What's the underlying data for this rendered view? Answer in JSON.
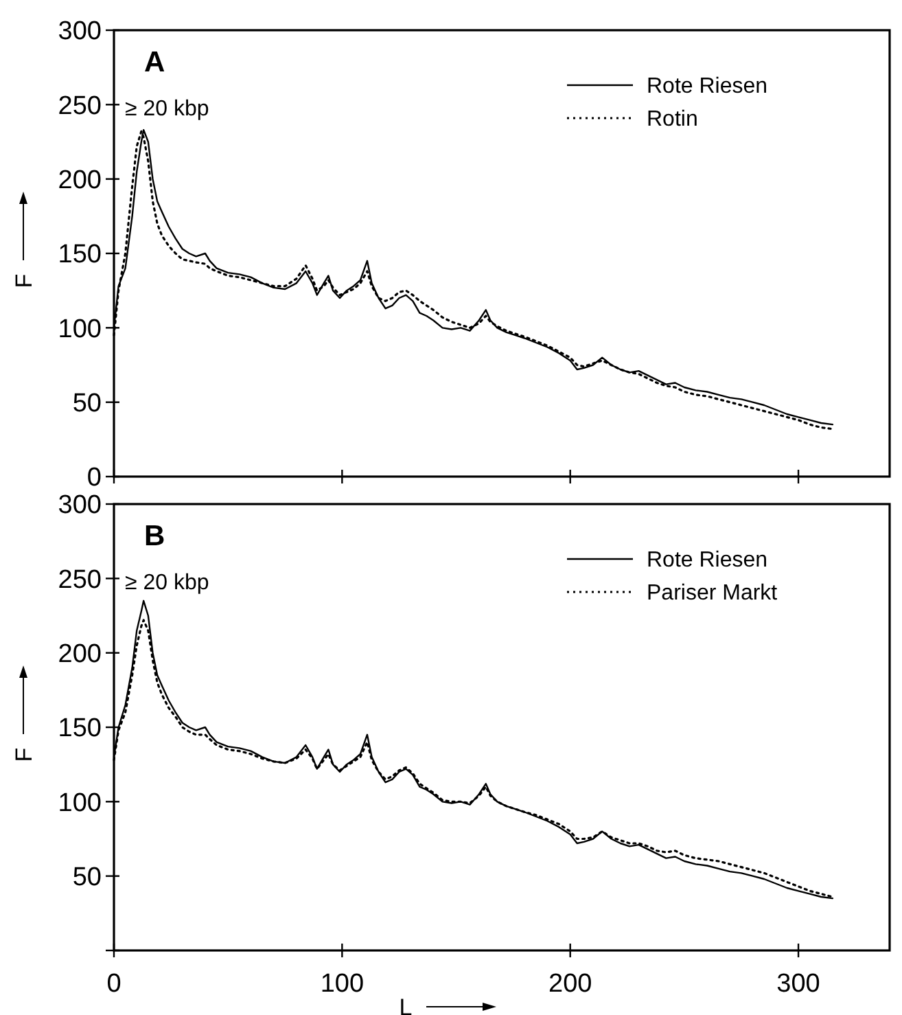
{
  "chart_data": [
    {
      "type": "line",
      "title": "A",
      "ylabel": "F",
      "annotations": [
        "≥ 20 kbp"
      ],
      "xlim": [
        0,
        340
      ],
      "xticks": [
        0,
        100,
        200,
        300
      ],
      "ylim": [
        0,
        300
      ],
      "yticks": [
        0,
        50,
        100,
        150,
        200,
        250,
        300
      ],
      "tick_labels": "y",
      "legend": "top right",
      "grid": false,
      "x": [
        0,
        2,
        5,
        8,
        10,
        12,
        13,
        15,
        17,
        19,
        21,
        24,
        27,
        30,
        33,
        36,
        40,
        42,
        45,
        50,
        55,
        60,
        65,
        70,
        75,
        80,
        84,
        87,
        89,
        92,
        94,
        96,
        99,
        102,
        105,
        108,
        111,
        113,
        116,
        119,
        122,
        125,
        128,
        131,
        134,
        137,
        140,
        144,
        148,
        152,
        156,
        160,
        163,
        165,
        168,
        172,
        176,
        180,
        185,
        190,
        195,
        200,
        203,
        206,
        210,
        214,
        218,
        222,
        226,
        230,
        234,
        238,
        242,
        246,
        250,
        255,
        260,
        265,
        270,
        275,
        280,
        285,
        290,
        295,
        300,
        305,
        310,
        315
      ],
      "series": [
        {
          "name": "Rote Riesen",
          "color": "#000000",
          "line_style": "solid",
          "values": [
            100,
            128,
            140,
            175,
            205,
            225,
            233,
            225,
            200,
            185,
            178,
            168,
            160,
            153,
            150,
            148,
            150,
            145,
            140,
            137,
            136,
            134,
            130,
            127,
            126,
            130,
            138,
            130,
            122,
            130,
            135,
            125,
            120,
            125,
            128,
            132,
            145,
            130,
            120,
            113,
            115,
            120,
            122,
            118,
            110,
            108,
            105,
            100,
            99,
            100,
            98,
            105,
            112,
            105,
            100,
            97,
            95,
            93,
            90,
            87,
            83,
            78,
            72,
            73,
            75,
            80,
            75,
            72,
            70,
            71,
            68,
            65,
            62,
            63,
            60,
            58,
            57,
            55,
            53,
            52,
            50,
            48,
            45,
            42,
            40,
            38,
            36,
            35
          ]
        },
        {
          "name": "Rotin",
          "color": "#000000",
          "line_style": "dotted",
          "values": [
            95,
            125,
            150,
            195,
            222,
            232,
            228,
            212,
            185,
            170,
            162,
            155,
            150,
            146,
            145,
            144,
            143,
            140,
            138,
            135,
            134,
            132,
            130,
            128,
            128,
            133,
            142,
            133,
            125,
            128,
            132,
            127,
            122,
            124,
            126,
            130,
            138,
            128,
            120,
            118,
            120,
            124,
            125,
            122,
            118,
            115,
            112,
            107,
            104,
            102,
            100,
            103,
            108,
            104,
            101,
            98,
            96,
            94,
            91,
            88,
            84,
            80,
            75,
            74,
            76,
            78,
            75,
            72,
            70,
            69,
            66,
            63,
            61,
            60,
            57,
            55,
            54,
            52,
            50,
            48,
            46,
            44,
            42,
            40,
            38,
            35,
            33,
            32
          ]
        }
      ]
    },
    {
      "type": "line",
      "title": "B",
      "xlabel": "L",
      "ylabel": "F",
      "annotations": [
        "≥ 20 kbp"
      ],
      "xlim": [
        0,
        340
      ],
      "xticks": [
        0,
        100,
        200,
        300
      ],
      "ylim": [
        0,
        300
      ],
      "yticks": [
        {
          "value": 0,
          "label": null
        },
        50,
        100,
        150,
        200,
        250,
        300
      ],
      "legend": "top right",
      "grid": false,
      "x": [
        0,
        2,
        5,
        8,
        10,
        12,
        13,
        15,
        17,
        19,
        21,
        24,
        27,
        30,
        33,
        36,
        40,
        42,
        45,
        50,
        55,
        60,
        65,
        70,
        75,
        80,
        84,
        87,
        89,
        92,
        94,
        96,
        99,
        102,
        105,
        108,
        111,
        113,
        116,
        119,
        122,
        125,
        128,
        131,
        134,
        137,
        140,
        144,
        148,
        152,
        156,
        160,
        163,
        165,
        168,
        172,
        176,
        180,
        185,
        190,
        195,
        200,
        203,
        206,
        210,
        214,
        218,
        222,
        226,
        230,
        234,
        238,
        242,
        246,
        250,
        255,
        260,
        265,
        270,
        275,
        280,
        285,
        290,
        295,
        300,
        305,
        310,
        315
      ],
      "series": [
        {
          "name": "Rote Riesen",
          "color": "#000000",
          "line_style": "solid",
          "values": [
            130,
            150,
            165,
            190,
            215,
            228,
            235,
            225,
            200,
            185,
            178,
            168,
            160,
            153,
            150,
            148,
            150,
            145,
            140,
            137,
            136,
            134,
            130,
            127,
            126,
            130,
            138,
            130,
            122,
            130,
            135,
            125,
            120,
            125,
            128,
            132,
            145,
            130,
            120,
            113,
            115,
            120,
            122,
            118,
            110,
            108,
            105,
            100,
            99,
            100,
            98,
            105,
            112,
            105,
            100,
            97,
            95,
            93,
            90,
            87,
            83,
            78,
            72,
            73,
            75,
            80,
            75,
            72,
            70,
            71,
            68,
            65,
            62,
            63,
            60,
            58,
            57,
            55,
            53,
            52,
            50,
            48,
            45,
            42,
            40,
            38,
            36,
            35
          ]
        },
        {
          "name": "Pariser Markt",
          "color": "#000000",
          "line_style": "dotted",
          "values": [
            128,
            148,
            160,
            185,
            205,
            218,
            222,
            215,
            195,
            180,
            172,
            163,
            157,
            150,
            147,
            145,
            145,
            142,
            138,
            135,
            134,
            132,
            129,
            127,
            126,
            129,
            135,
            129,
            122,
            128,
            132,
            125,
            121,
            124,
            127,
            130,
            140,
            128,
            120,
            115,
            117,
            121,
            123,
            119,
            112,
            109,
            106,
            101,
            100,
            100,
            99,
            104,
            110,
            104,
            100,
            97,
            95,
            93,
            91,
            88,
            85,
            80,
            75,
            75,
            76,
            80,
            76,
            74,
            72,
            72,
            70,
            67,
            66,
            67,
            64,
            62,
            61,
            60,
            58,
            56,
            54,
            52,
            49,
            46,
            43,
            40,
            38,
            36
          ]
        }
      ]
    }
  ]
}
